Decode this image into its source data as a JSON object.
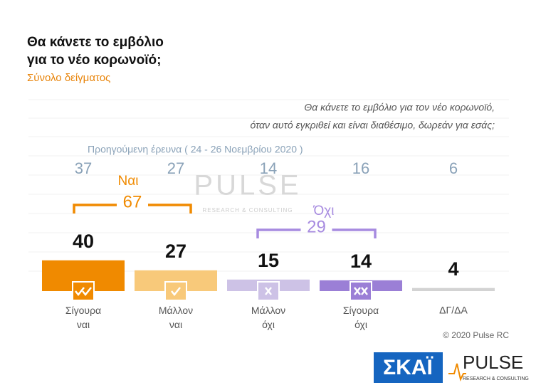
{
  "chart_data": {
    "type": "bar",
    "title_lines": [
      "Θα κάνετε το εμβόλιο",
      "για το νέο κορωνοϊό;"
    ],
    "subtitle": "Σύνολο δείγματος",
    "question_lines": [
      "Θα κάνετε το εμβόλιο για τον νέο κορωνοϊό,",
      "όταν αυτό εγκριθεί και είναι διαθέσιμο, δωρεάν για εσάς;"
    ],
    "previous_label": "Προηγούμενη έρευνα  ( 24 - 26 Νοεμβρίου  2020 )",
    "categories": [
      "Σίγουρα ναι",
      "Μάλλον ναι",
      "Μάλλον όχι",
      "Σίγουρα όχι",
      "ΔΓ/ΔΑ"
    ],
    "values": [
      40,
      27,
      15,
      14,
      4
    ],
    "colors": [
      "#f08a00",
      "#f8c97a",
      "#cdc2e6",
      "#9b7fd6",
      "#d3d3d3"
    ],
    "previous_values": [
      37,
      27,
      14,
      16,
      6
    ],
    "groups": [
      {
        "name": "Ναι",
        "total": 67,
        "color": "#f08a00"
      },
      {
        "name": "Όχι",
        "total": 29,
        "color": "#a78be0"
      }
    ],
    "watermark": [
      "PULSE",
      "RESEARCH & CONSULTING"
    ],
    "copyright": "© 2020 Pulse RC",
    "logos": [
      "ΣΚΑΪ",
      "PULSE",
      "RESEARCH & CONSULTING"
    ]
  }
}
